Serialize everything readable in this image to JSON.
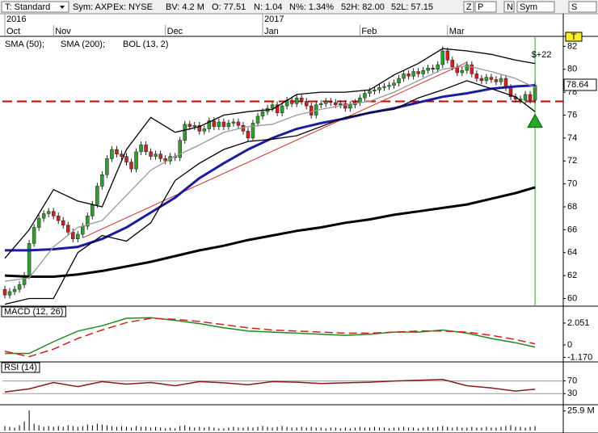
{
  "toolbar": {
    "style": "T: Standard",
    "symbol": "Sym: AXP",
    "exchange": "Ex: NYSE",
    "bv": "BV: 4.2 M",
    "open": "O: 77.51",
    "net": "N: 1.04",
    "net_pct": "N%: 1.34%",
    "high_52": "52H: 82.00",
    "low_52": "52L: 57.15",
    "buttons": [
      "Z",
      "P",
      "N",
      "Sym",
      "S"
    ]
  },
  "chart_data": [
    {
      "type": "candlestick",
      "categories": [
        "Oct",
        null,
        null,
        null,
        null,
        null,
        null,
        null,
        null,
        null,
        "Nov",
        null,
        null,
        null,
        null,
        null,
        null,
        null,
        null,
        null,
        null,
        null,
        null,
        null,
        null,
        null,
        null,
        null,
        null,
        null,
        null,
        null,
        null,
        "Dec",
        null,
        null,
        null,
        null,
        null,
        null,
        null,
        null,
        null,
        null,
        null,
        null,
        null,
        null,
        null,
        null,
        null,
        null,
        null,
        "Jan",
        null,
        null,
        null,
        null,
        null,
        null,
        null,
        null,
        null,
        null,
        null,
        null,
        null,
        null,
        null,
        null,
        null,
        null,
        null,
        "Feb",
        null,
        null,
        null,
        null,
        null,
        null,
        null,
        null,
        null,
        null,
        null,
        null,
        null,
        null,
        null,
        null,
        null,
        "Mar",
        null,
        null,
        null,
        null,
        null,
        null,
        null,
        null,
        null,
        null,
        null,
        null,
        null,
        null,
        null,
        null,
        null,
        null
      ],
      "year_categories": [
        "2016",
        null,
        null,
        null,
        null,
        null,
        null,
        null,
        null,
        null,
        null,
        null,
        null,
        null,
        null,
        null,
        null,
        null,
        null,
        null,
        null,
        null,
        null,
        null,
        null,
        null,
        null,
        null,
        null,
        null,
        null,
        null,
        null,
        null,
        null,
        null,
        null,
        null,
        null,
        null,
        null,
        null,
        null,
        null,
        null,
        null,
        null,
        null,
        null,
        null,
        null,
        null,
        null,
        "2017",
        null,
        null,
        null,
        null,
        null,
        null,
        null,
        null,
        null,
        null,
        null,
        null,
        null,
        null,
        null,
        null,
        null,
        null,
        null,
        null,
        null,
        null,
        null,
        null,
        null,
        null,
        null,
        null,
        null,
        null,
        null,
        null,
        null,
        null,
        null,
        null,
        null,
        null,
        null,
        null,
        null,
        null,
        null,
        null,
        null,
        null,
        null,
        null,
        null,
        null,
        null,
        null,
        null,
        null
      ],
      "open": [
        60.8,
        60.3,
        60.6,
        60.8,
        61.2,
        62.0,
        64.8,
        66.2,
        67.0,
        67.4,
        67.6,
        67.2,
        66.8,
        66.4,
        65.8,
        65.2,
        65.6,
        66.3,
        67.2,
        68.2,
        69.8,
        70.8,
        72.2,
        73.0,
        72.6,
        72.4,
        71.9,
        71.3,
        72.8,
        73.4,
        72.8,
        72.4,
        72.6,
        72.2,
        72.0,
        72.4,
        72.3,
        73.8,
        75.2,
        75.0,
        75.1,
        74.6,
        74.8,
        75.5,
        75.0,
        75.4,
        75.0,
        75.3,
        75.4,
        75.1,
        74.6,
        74.0,
        75.3,
        75.9,
        76.3,
        76.6,
        76.9,
        76.2,
        76.8,
        77.3,
        77.0,
        77.5,
        77.2,
        76.8,
        76.0,
        76.9,
        77.0,
        77.2,
        77.1,
        76.9,
        77.0,
        76.6,
        76.9,
        77.1,
        77.5,
        77.9,
        78.1,
        78.2,
        78.4,
        78.5,
        78.6,
        78.8,
        79.2,
        79.6,
        79.4,
        79.8,
        79.6,
        79.9,
        80.1,
        80.0,
        80.4,
        81.6,
        80.8,
        80.2,
        79.7,
        79.9,
        80.4,
        79.6,
        79.2,
        79.0,
        79.3,
        79.1,
        78.9,
        79.2,
        78.4,
        77.6,
        77.4,
        77.3,
        77.8,
        77.3
      ],
      "high": [
        61.1,
        60.9,
        61.1,
        61.5,
        62.3,
        65.1,
        66.5,
        67.3,
        67.7,
        67.9,
        67.9,
        67.5,
        67.1,
        66.7,
        66.1,
        65.9,
        66.6,
        67.5,
        68.5,
        70.1,
        71.1,
        72.5,
        73.3,
        73.3,
        72.9,
        72.7,
        72.2,
        73.1,
        73.7,
        73.7,
        73.1,
        72.9,
        72.9,
        72.5,
        72.7,
        72.7,
        74.1,
        75.5,
        75.5,
        75.4,
        75.4,
        75.1,
        75.8,
        75.8,
        75.7,
        75.7,
        75.6,
        75.7,
        75.7,
        75.4,
        74.9,
        75.6,
        76.2,
        76.6,
        76.9,
        77.2,
        77.2,
        77.1,
        77.6,
        77.6,
        77.8,
        77.8,
        77.5,
        77.1,
        77.2,
        77.3,
        77.5,
        77.5,
        77.4,
        77.3,
        77.3,
        77.2,
        77.4,
        77.8,
        78.2,
        78.4,
        78.5,
        78.7,
        78.8,
        78.9,
        79.1,
        79.5,
        79.9,
        79.9,
        80.1,
        80.1,
        80.2,
        80.4,
        80.4,
        80.7,
        82.0,
        81.9,
        81.1,
        80.5,
        80.2,
        80.7,
        80.7,
        79.9,
        79.5,
        79.6,
        79.6,
        79.4,
        79.5,
        79.5,
        78.7,
        77.9,
        77.7,
        78.1,
        78.1,
        78.9
      ],
      "low": [
        60.0,
        60.0,
        60.3,
        60.5,
        60.9,
        61.7,
        64.5,
        65.9,
        66.7,
        67.1,
        66.9,
        66.5,
        66.1,
        65.5,
        64.9,
        64.9,
        65.3,
        66.0,
        66.9,
        67.9,
        69.5,
        70.5,
        71.9,
        72.3,
        72.1,
        71.6,
        71.0,
        71.0,
        72.5,
        72.5,
        72.1,
        72.1,
        71.9,
        71.7,
        71.7,
        72.0,
        72.0,
        73.5,
        74.7,
        74.7,
        74.3,
        74.3,
        74.5,
        74.7,
        74.7,
        74.7,
        74.7,
        75.0,
        74.8,
        74.3,
        73.7,
        73.7,
        75.0,
        75.6,
        76.0,
        76.3,
        75.9,
        75.9,
        76.5,
        76.7,
        76.7,
        76.9,
        76.5,
        75.7,
        75.7,
        76.6,
        76.7,
        76.8,
        76.6,
        76.6,
        76.3,
        76.3,
        76.6,
        76.8,
        77.2,
        77.6,
        77.8,
        77.9,
        78.1,
        78.2,
        78.3,
        78.5,
        78.9,
        79.1,
        79.1,
        79.3,
        79.3,
        79.6,
        79.7,
        79.7,
        80.1,
        80.5,
        79.9,
        79.4,
        79.4,
        79.6,
        79.3,
        78.9,
        78.7,
        78.7,
        78.8,
        78.6,
        78.6,
        78.1,
        77.3,
        77.1,
        77.0,
        77.0,
        77.0,
        77.0
      ],
      "close": [
        60.3,
        60.6,
        60.8,
        61.2,
        62.0,
        64.8,
        66.2,
        67.0,
        67.4,
        67.6,
        67.2,
        66.8,
        66.4,
        65.8,
        65.2,
        65.6,
        66.3,
        67.2,
        68.2,
        69.8,
        70.8,
        72.2,
        73.0,
        72.6,
        72.4,
        71.9,
        71.3,
        72.8,
        73.4,
        72.8,
        72.4,
        72.6,
        72.2,
        72.0,
        72.4,
        72.3,
        73.8,
        75.2,
        75.0,
        75.1,
        74.6,
        74.8,
        75.5,
        75.0,
        75.4,
        75.0,
        75.3,
        75.4,
        75.1,
        74.6,
        74.0,
        75.3,
        75.9,
        76.3,
        76.6,
        76.9,
        76.2,
        76.8,
        77.3,
        77.0,
        77.5,
        77.2,
        76.8,
        76.0,
        76.9,
        77.0,
        77.2,
        77.1,
        76.9,
        77.0,
        76.6,
        76.9,
        77.1,
        77.5,
        77.9,
        78.1,
        78.2,
        78.4,
        78.5,
        78.6,
        78.8,
        79.2,
        79.6,
        79.4,
        79.8,
        79.6,
        79.9,
        80.1,
        80.0,
        80.4,
        81.6,
        80.8,
        80.2,
        79.7,
        79.9,
        80.4,
        79.6,
        79.2,
        79.0,
        79.3,
        79.1,
        78.9,
        79.2,
        78.4,
        77.6,
        77.4,
        77.3,
        77.8,
        77.3,
        78.6
      ],
      "up_color": "#2e9e2e",
      "down_color": "#cc2222",
      "overlays": [
        {
          "name": "SMA (50);",
          "color": "#1c1c9c",
          "width": 3,
          "x": [
            0,
            5,
            10,
            15,
            20,
            25,
            30,
            35,
            40,
            45,
            50,
            55,
            60,
            65,
            70,
            75,
            80,
            85,
            90,
            95,
            100,
            105,
            109
          ],
          "values": [
            64.2,
            64.2,
            64.3,
            64.5,
            65.2,
            66.2,
            67.5,
            68.8,
            70.5,
            71.8,
            73.0,
            74.0,
            74.8,
            75.3,
            75.7,
            76.2,
            76.6,
            77.1,
            77.6,
            77.9,
            78.3,
            78.5,
            78.6
          ]
        },
        {
          "name": "SMA (200);",
          "color": "#000000",
          "width": 3,
          "x": [
            0,
            5,
            10,
            15,
            20,
            25,
            30,
            35,
            40,
            45,
            50,
            55,
            60,
            65,
            70,
            75,
            80,
            85,
            90,
            95,
            100,
            105,
            109
          ],
          "values": [
            62.0,
            61.9,
            61.9,
            62.1,
            62.4,
            62.8,
            63.2,
            63.7,
            64.2,
            64.6,
            65.1,
            65.5,
            65.9,
            66.2,
            66.6,
            66.9,
            67.3,
            67.6,
            67.9,
            68.2,
            68.7,
            69.2,
            69.7
          ]
        },
        {
          "name": "BOL (13, 2)",
          "color": "#000000",
          "middle_color": "#999999",
          "width": 1.3,
          "x": [
            0,
            5,
            10,
            15,
            20,
            25,
            30,
            35,
            40,
            45,
            50,
            55,
            60,
            65,
            70,
            75,
            80,
            85,
            90,
            95,
            100,
            105,
            109
          ],
          "upper": [
            63.5,
            66.0,
            69.5,
            68.5,
            68.0,
            73.0,
            75.8,
            74.5,
            75.0,
            76.0,
            76.3,
            76.5,
            77.8,
            78.0,
            78.0,
            78.2,
            79.5,
            80.5,
            81.8,
            81.6,
            81.3,
            80.8,
            80.5
          ],
          "middle": [
            61.5,
            61.8,
            64.5,
            66.2,
            66.8,
            69.0,
            71.2,
            72.4,
            73.4,
            74.5,
            75.0,
            75.2,
            76.0,
            76.5,
            76.9,
            77.2,
            78.0,
            79.0,
            80.0,
            80.3,
            79.8,
            79.2,
            78.4
          ],
          "lower": [
            59.5,
            60.0,
            60.0,
            64.0,
            65.5,
            65.0,
            66.6,
            70.3,
            71.8,
            73.0,
            73.7,
            73.9,
            74.2,
            75.0,
            75.8,
            76.2,
            76.5,
            77.5,
            78.2,
            79.0,
            78.3,
            77.6,
            76.3
          ]
        }
      ],
      "trendline": {
        "x": [
          16,
          95
        ],
        "values": [
          65.3,
          80.6
        ],
        "color": "#d03030"
      },
      "level": {
        "value": 77.2,
        "color": "#cc0000"
      },
      "last_price": 78.64,
      "signal": {
        "label": "$+22",
        "x": 109,
        "value": 75.5,
        "color": "#22aa22"
      },
      "badge": "T",
      "xlim": [
        -0.5,
        114.8
      ],
      "ylim": [
        59.4,
        82.8
      ],
      "yticks": [
        60,
        62,
        64,
        66,
        68,
        70,
        72,
        74,
        76,
        78,
        80,
        82
      ],
      "grid": false
    },
    {
      "type": "line",
      "title": "MACD (12, 26)",
      "series": [
        {
          "color": "#1f8a1f",
          "dashed": false,
          "x": [
            0,
            5,
            10,
            15,
            20,
            25,
            30,
            35,
            40,
            45,
            50,
            55,
            60,
            65,
            70,
            75,
            80,
            85,
            90,
            95,
            100,
            105,
            109
          ],
          "values": [
            -0.8,
            -0.8,
            0.3,
            1.3,
            1.8,
            2.5,
            2.55,
            2.3,
            2.0,
            1.6,
            1.3,
            1.2,
            1.1,
            1.0,
            0.9,
            1.0,
            1.2,
            1.2,
            1.4,
            1.1,
            0.6,
            0.2,
            -0.2
          ]
        },
        {
          "color": "#d02020",
          "dashed": true,
          "x": [
            0,
            5,
            10,
            15,
            20,
            25,
            30,
            35,
            40,
            45,
            50,
            55,
            60,
            65,
            70,
            75,
            80,
            85,
            90,
            95,
            100,
            105,
            109
          ],
          "values": [
            -0.6,
            -1.1,
            -0.4,
            0.6,
            1.4,
            2.1,
            2.5,
            2.4,
            2.2,
            1.9,
            1.6,
            1.4,
            1.3,
            1.2,
            1.1,
            1.1,
            1.2,
            1.3,
            1.3,
            1.2,
            0.9,
            0.5,
            0.1
          ]
        }
      ],
      "xlim": [
        -0.5,
        114.8
      ],
      "ylim": [
        -1.52,
        2.65
      ],
      "yticks": [
        2.051,
        0,
        {
          "value": -1.17,
          "label": "-1.170"
        }
      ],
      "grid": false
    },
    {
      "type": "line",
      "title": "RSI (14)",
      "series": [
        {
          "color": "#8b1a1a",
          "dashed": false,
          "x": [
            0,
            5,
            10,
            15,
            20,
            25,
            30,
            35,
            40,
            45,
            50,
            55,
            60,
            65,
            70,
            75,
            80,
            85,
            90,
            95,
            100,
            105,
            109
          ],
          "values": [
            35,
            45,
            65,
            52,
            68,
            60,
            65,
            55,
            68,
            64,
            58,
            68,
            66,
            62,
            64,
            66,
            70,
            72,
            75,
            55,
            48,
            38,
            44
          ]
        }
      ],
      "xlim": [
        -0.5,
        114.8
      ],
      "ylim": [
        0,
        120
      ],
      "yticks": [
        70,
        30
      ],
      "grid": true
    },
    {
      "type": "bar",
      "values": [
        6,
        5,
        4,
        7,
        12,
        26.5,
        9,
        7,
        5,
        6,
        5,
        6,
        5,
        7,
        6,
        5,
        6,
        8,
        7,
        9,
        8,
        7,
        6,
        5,
        6,
        5,
        4,
        6,
        5,
        5,
        4,
        5,
        4,
        3,
        4,
        3,
        6,
        7,
        5,
        4,
        5,
        4,
        5,
        4,
        3,
        3,
        4,
        5,
        4,
        4,
        5,
        4,
        5,
        6,
        5,
        4,
        5,
        6,
        5,
        4,
        4,
        5,
        4,
        5,
        4,
        4,
        3,
        4,
        4,
        3,
        4,
        3,
        4,
        5,
        4,
        4,
        5,
        4,
        4,
        3,
        4,
        4,
        5,
        4,
        4,
        3,
        4,
        5,
        4,
        5,
        6,
        5,
        4,
        5,
        4,
        4,
        5,
        4,
        4,
        5,
        4,
        4,
        5,
        6,
        7,
        5,
        5,
        4,
        5,
        6
      ],
      "color": "#000000",
      "xlim": [
        -0.5,
        114.8
      ],
      "ylim": [
        0,
        32
      ],
      "yticks": [
        {
          "value": 25.9,
          "label": "25.9 M"
        }
      ],
      "grid": false
    }
  ]
}
